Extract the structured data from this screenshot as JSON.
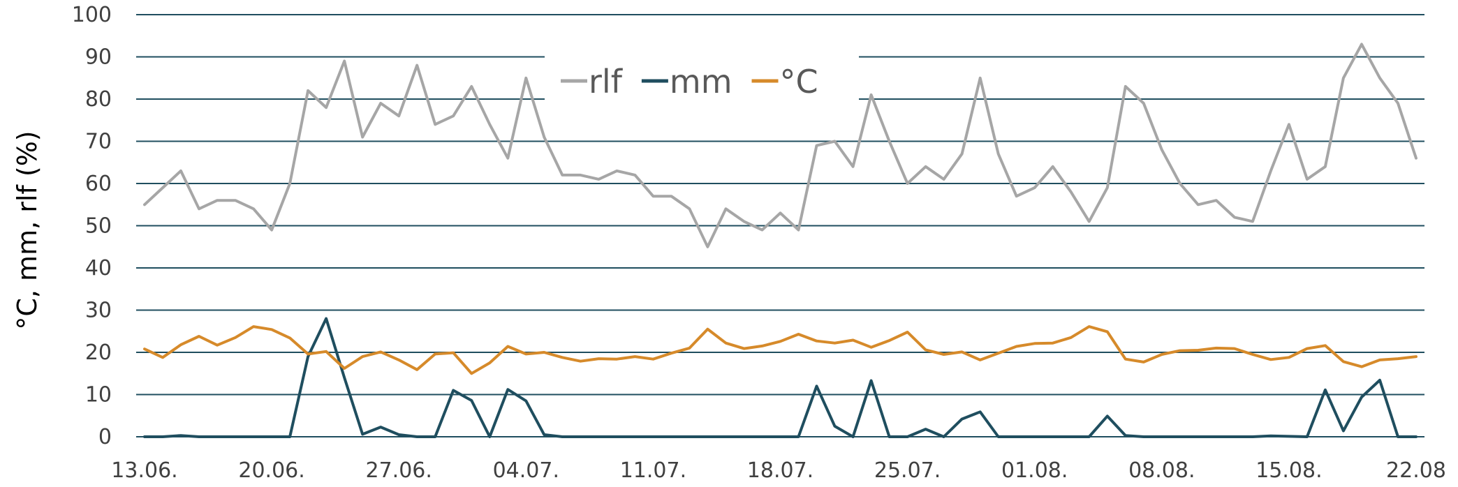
{
  "chart_data": {
    "type": "line",
    "title": "",
    "xlabel": "",
    "ylabel": "°C, mm, rlf (%)",
    "ylim": [
      0,
      100
    ],
    "yticks": [
      0,
      10,
      20,
      30,
      40,
      50,
      60,
      70,
      80,
      90,
      100
    ],
    "x_tick_labels": [
      "13.06.",
      "20.06.",
      "27.06.",
      "04.07.",
      "11.07.",
      "18.07.",
      "25.07.",
      "01.08.",
      "08.08.",
      "15.08.",
      "22.08"
    ],
    "x_tick_index": [
      0,
      7,
      14,
      21,
      28,
      35,
      42,
      49,
      56,
      63,
      70
    ],
    "grid": true,
    "legend_position": "top-center",
    "series": [
      {
        "name": "rlf",
        "color": "#a6a6a6",
        "values": [
          55,
          59,
          63,
          54,
          56,
          56,
          54,
          49,
          60,
          82,
          78,
          89,
          71,
          79,
          76,
          88,
          74,
          76,
          83,
          74,
          66,
          85,
          71,
          62,
          62,
          61,
          63,
          62,
          57,
          57,
          54,
          45,
          54,
          51,
          49,
          53,
          49,
          69,
          70,
          64,
          81,
          70,
          60,
          64,
          61,
          67,
          85,
          67,
          57,
          59,
          64,
          58,
          51,
          59,
          83,
          79,
          68,
          60,
          55,
          56,
          52,
          51,
          63,
          74,
          61,
          64,
          85,
          93,
          85,
          79,
          66
        ]
      },
      {
        "name": "mm",
        "color": "#1f4e5f",
        "values": [
          0,
          0,
          0.3,
          0,
          0,
          0,
          0,
          0,
          0,
          19,
          28,
          14,
          0.6,
          2.3,
          0.5,
          0,
          0,
          11,
          8.6,
          0,
          11.2,
          8.5,
          0.5,
          0,
          0,
          0,
          0,
          0,
          0,
          0,
          0,
          0,
          0,
          0,
          0,
          0,
          0,
          12,
          2.5,
          0,
          13.3,
          0,
          0,
          1.8,
          0,
          4.2,
          5.9,
          0,
          0,
          0,
          0,
          0,
          0,
          4.9,
          0.3,
          0,
          0,
          0,
          0,
          0,
          0,
          0,
          0.2,
          0.1,
          0,
          11.1,
          1.4,
          9.4,
          13.4,
          0,
          0
        ]
      },
      {
        "name": "°C",
        "color": "#d68a2a",
        "values": [
          20.8,
          18.8,
          21.8,
          23.8,
          21.7,
          23.5,
          26.1,
          25.4,
          23.4,
          19.6,
          20.2,
          16.2,
          19,
          20.1,
          18.2,
          15.9,
          19.6,
          19.9,
          15,
          17.5,
          21.4,
          19.6,
          20,
          18.8,
          17.9,
          18.5,
          18.4,
          19,
          18.4,
          19.8,
          21,
          25.5,
          22.2,
          20.9,
          21.5,
          22.6,
          24.3,
          22.7,
          22.2,
          22.9,
          21.2,
          22.8,
          24.8,
          20.6,
          19.5,
          20.1,
          18.2,
          19.8,
          21.4,
          22.1,
          22.2,
          23.5,
          26.1,
          24.9,
          18.4,
          17.7,
          19.5,
          20.4,
          20.5,
          21,
          20.9,
          19.5,
          18.3,
          18.8,
          20.9,
          21.6,
          17.8,
          16.6,
          18.2,
          18.5,
          19
        ]
      }
    ]
  }
}
